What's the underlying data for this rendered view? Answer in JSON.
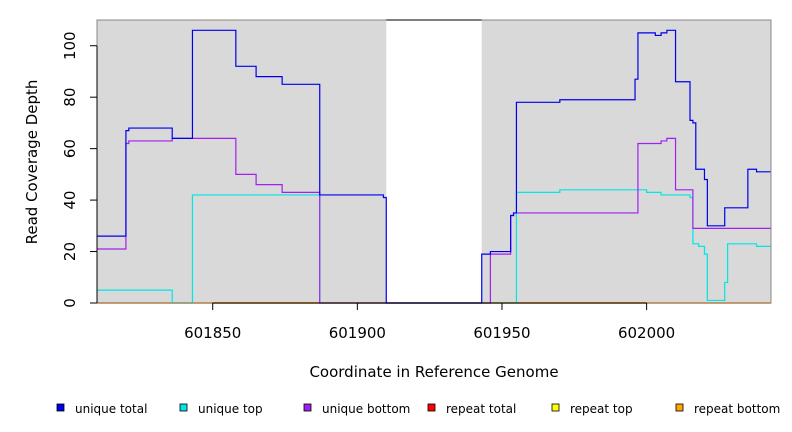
{
  "chart_data": {
    "type": "line",
    "title": "",
    "xlabel": "Coordinate in Reference Genome",
    "ylabel": "Read Coverage Depth",
    "xlim": [
      601810,
      602043
    ],
    "ylim": [
      0,
      110
    ],
    "x_ticks": [
      601850,
      601900,
      601950,
      602000
    ],
    "y_ticks": [
      0,
      20,
      40,
      60,
      80,
      100
    ],
    "grid": false,
    "legend_placement": "bottom",
    "shaded_regions": [
      [
        601810,
        601910
      ],
      [
        601943,
        602043
      ]
    ],
    "background_color": "#d9d9d9",
    "series": [
      {
        "name": "unique total",
        "color": "#0000ee",
        "x": [
          601810,
          601820,
          601821,
          601836,
          601843,
          601858,
          601865,
          601874,
          601887,
          601909,
          601910,
          601943,
          601946,
          601953,
          601954,
          601955,
          601970,
          601996,
          601997,
          601999,
          602003,
          602005,
          602007,
          602010,
          602015,
          602016,
          602017,
          602020,
          602021,
          602025,
          602027,
          602035,
          602038,
          602043
        ],
        "y": [
          26,
          67,
          68,
          64,
          106,
          92,
          88,
          85,
          42,
          41,
          0,
          19,
          20,
          34,
          35,
          78,
          79,
          87,
          105,
          105,
          104,
          105,
          106,
          86,
          71,
          70,
          52,
          48,
          30,
          30,
          37,
          52,
          51,
          51
        ]
      },
      {
        "name": "unique top",
        "color": "#00e5e5",
        "x": [
          601810,
          601836,
          601843,
          601887,
          601954,
          601955,
          601970,
          601996,
          602000,
          602005,
          602015,
          602016,
          602018,
          602020,
          602021,
          602026,
          602027,
          602028,
          602038,
          602043
        ],
        "y": [
          5,
          0,
          42,
          0,
          0,
          43,
          44,
          44,
          43,
          42,
          41,
          23,
          22,
          19,
          1,
          1,
          8,
          23,
          22,
          22
        ]
      },
      {
        "name": "unique bottom",
        "color": "#a020f0",
        "x": [
          601810,
          601820,
          601821,
          601836,
          601843,
          601858,
          601865,
          601874,
          601887,
          601910,
          601943,
          601946,
          601953,
          601954,
          601996,
          601997,
          602003,
          602005,
          602007,
          602010,
          602015,
          602016,
          602043
        ],
        "y": [
          21,
          62,
          63,
          64,
          64,
          50,
          46,
          43,
          0,
          0,
          0,
          19,
          34,
          35,
          35,
          62,
          62,
          63,
          64,
          44,
          44,
          29,
          29
        ]
      },
      {
        "name": "repeat total",
        "color": "#ff0000",
        "x": [
          601810,
          602043
        ],
        "y": [
          0,
          0
        ]
      },
      {
        "name": "repeat top",
        "color": "#ffff00",
        "x": [
          601810,
          602043
        ],
        "y": [
          0,
          0
        ]
      },
      {
        "name": "repeat bottom",
        "color": "#ffa500",
        "x": [
          601810,
          602043
        ],
        "y": [
          0,
          0
        ]
      }
    ]
  }
}
